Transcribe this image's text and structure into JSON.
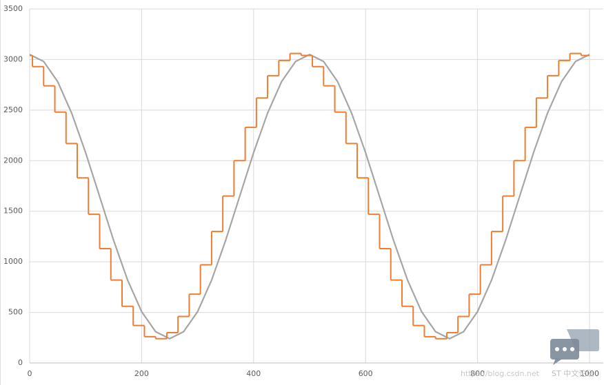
{
  "chart_data": {
    "type": "line",
    "xlim": [
      0,
      1000
    ],
    "xticks": [
      0,
      200,
      400,
      600,
      800,
      1000
    ],
    "ylim": [
      0,
      3500
    ],
    "yticks": [
      0,
      500,
      1000,
      1500,
      2000,
      2500,
      3000,
      3500
    ],
    "grid": true,
    "series": [
      {
        "color": "#a5a5a5",
        "step": false,
        "x": [
          0,
          25,
          50,
          75,
          100,
          125,
          150,
          175,
          200,
          225,
          250,
          275,
          300,
          325,
          350,
          375,
          400,
          425,
          450,
          475,
          500,
          525,
          550,
          575,
          600,
          625,
          650,
          675,
          700,
          725,
          750,
          775,
          800,
          825,
          850,
          875,
          900,
          925,
          950,
          975,
          1000
        ],
        "values": [
          3050,
          2981,
          2782,
          2471,
          2079,
          1645,
          1211,
          819,
          508,
          309,
          240,
          309,
          508,
          819,
          1211,
          1645,
          2079,
          2471,
          2782,
          2981,
          3050,
          2981,
          2782,
          2471,
          2079,
          1645,
          1211,
          819,
          508,
          309,
          240,
          309,
          508,
          819,
          1211,
          1645,
          2079,
          2471,
          2782,
          2981,
          3050
        ]
      },
      {
        "color": "#ed7d31",
        "step": true,
        "x": [
          0,
          5,
          25,
          45,
          65,
          85,
          105,
          125,
          145,
          165,
          185,
          205,
          225,
          245,
          265,
          285,
          305,
          325,
          345,
          365,
          385,
          405,
          425,
          445,
          465,
          485,
          505,
          525,
          545,
          565,
          585,
          605,
          625,
          645,
          665,
          685,
          705,
          725,
          745,
          765,
          785,
          805,
          825,
          845,
          865,
          885,
          905,
          925,
          945,
          965,
          985
        ],
        "values": [
          3040,
          2930,
          2740,
          2480,
          2170,
          1830,
          1470,
          1130,
          820,
          560,
          370,
          260,
          240,
          300,
          460,
          680,
          970,
          1300,
          1650,
          2000,
          2330,
          2620,
          2840,
          2990,
          3060,
          3040,
          2930,
          2740,
          2480,
          2170,
          1830,
          1470,
          1130,
          820,
          560,
          370,
          260,
          240,
          300,
          460,
          680,
          970,
          1300,
          1650,
          2000,
          2330,
          2620,
          2840,
          2990,
          3060,
          3040
        ]
      }
    ]
  },
  "watermark": "ST 中文论坛",
  "watermark_url": "https://blog.csdn.net"
}
